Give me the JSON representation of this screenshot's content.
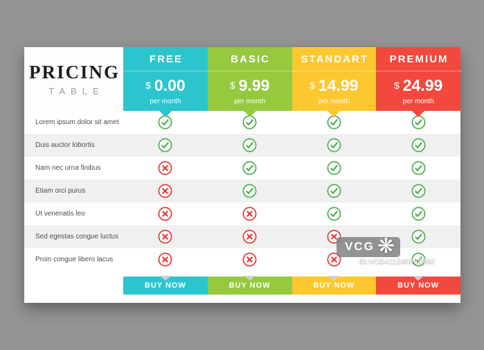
{
  "page": {
    "background": "#949494"
  },
  "table": {
    "title": "PRICING",
    "subtitle": "TABLE",
    "features": [
      "Lorem ipsum dolor sit amet",
      "Duis auctor lobortis",
      "Nam nec urna finibus",
      "Etiam orci purus",
      "Ut venenatis leo",
      "Sed egestas congue luctus",
      "Proin congue libero lacus"
    ],
    "plans": [
      {
        "name": "FREE",
        "currency": "$",
        "price": "0.00",
        "period": "per month",
        "button": "BUY NOW",
        "color": "#2cc5ce",
        "availability": [
          true,
          true,
          false,
          false,
          false,
          false,
          false
        ]
      },
      {
        "name": "BASIC",
        "currency": "$",
        "price": "9.99",
        "period": "per month",
        "button": "BUY NOW",
        "color": "#95c93e",
        "availability": [
          true,
          true,
          true,
          true,
          false,
          false,
          false
        ]
      },
      {
        "name": "STANDART",
        "currency": "$",
        "price": "14.99",
        "period": "per month",
        "button": "BUY NOW",
        "color": "#fdc72f",
        "availability": [
          true,
          true,
          true,
          true,
          true,
          false,
          false
        ]
      },
      {
        "name": "PREMIUM",
        "currency": "$",
        "price": "24.99",
        "period": "per month",
        "button": "BUY NOW",
        "color": "#f2483e",
        "availability": [
          true,
          true,
          true,
          true,
          true,
          true,
          true
        ]
      }
    ],
    "row_alt_color": "#f0f0f0"
  },
  "icons": {
    "check_icon": "check-icon",
    "cross_icon": "cross-icon",
    "check_color": "#4caf50",
    "cross_color": "#e23b35"
  },
  "watermark": {
    "logo_text": "VCG",
    "star_glyph": "❋",
    "id_text": "ID:VCG411240065960"
  }
}
